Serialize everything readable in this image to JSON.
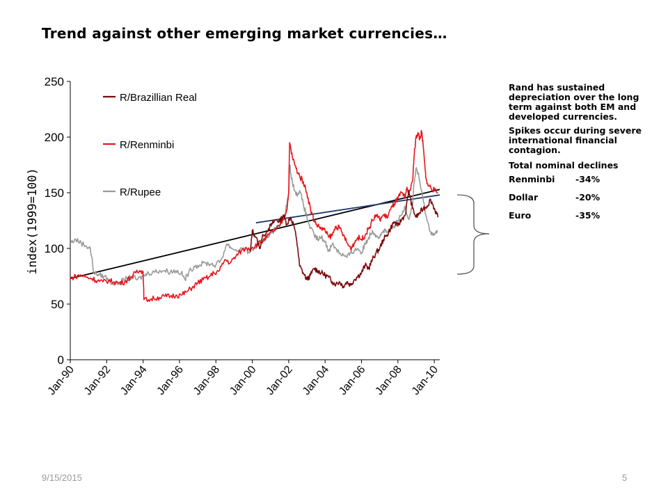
{
  "slide": {
    "title": "Trend against other emerging market currencies…",
    "date": "9/15/2015",
    "page": "5"
  },
  "notes": {
    "paragraph1": "Rand has sustained depreciation over the long term against both EM and developed currencies.",
    "paragraph2": "Spikes occur during severe international financial contagion.",
    "declines_heading": "Total nominal declines",
    "declines": [
      {
        "name": "Renminbi",
        "value": "-34%"
      },
      {
        "name": "Dollar",
        "value": "-20%"
      },
      {
        "name": "Euro",
        "value": "-35%"
      }
    ]
  },
  "chart_data": {
    "type": "line",
    "ylabel": "index(1999=100)",
    "ylim": [
      0,
      250
    ],
    "yticks": [
      0,
      50,
      100,
      150,
      200,
      250
    ],
    "xlim": [
      1990.0,
      2010.3
    ],
    "xticks": [
      {
        "label": "Jan-90",
        "x": 1990
      },
      {
        "label": "Jan-92",
        "x": 1992
      },
      {
        "label": "Jan-94",
        "x": 1994
      },
      {
        "label": "Jan-96",
        "x": 1996
      },
      {
        "label": "Jan-98",
        "x": 1998
      },
      {
        "label": "Jan-00",
        "x": 2000
      },
      {
        "label": "Jan-02",
        "x": 2002
      },
      {
        "label": "Jan-04",
        "x": 2004
      },
      {
        "label": "Jan-06",
        "x": 2006
      },
      {
        "label": "Jan-08",
        "x": 2008
      },
      {
        "label": "Jan-10",
        "x": 2010
      }
    ],
    "legend_position": "top-left",
    "series": [
      {
        "name": "R/Brazillian Real",
        "color": "#7a0a0a",
        "points": [
          [
            1999.9,
            97
          ],
          [
            2000.0,
            116
          ],
          [
            2000.2,
            110
          ],
          [
            2000.4,
            100
          ],
          [
            2000.6,
            112
          ],
          [
            2000.9,
            118
          ],
          [
            2001.1,
            122
          ],
          [
            2001.3,
            126
          ],
          [
            2001.5,
            124
          ],
          [
            2001.7,
            130
          ],
          [
            2001.9,
            122
          ],
          [
            2002.1,
            128
          ],
          [
            2002.3,
            120
          ],
          [
            2002.5,
            100
          ],
          [
            2002.6,
            84
          ],
          [
            2002.8,
            78
          ],
          [
            2003.0,
            72
          ],
          [
            2003.2,
            76
          ],
          [
            2003.4,
            82
          ],
          [
            2003.6,
            80
          ],
          [
            2003.8,
            78
          ],
          [
            2004.0,
            76
          ],
          [
            2004.2,
            74
          ],
          [
            2004.4,
            70
          ],
          [
            2004.6,
            68
          ],
          [
            2004.8,
            70
          ],
          [
            2005.0,
            66
          ],
          [
            2005.2,
            70
          ],
          [
            2005.4,
            67
          ],
          [
            2005.6,
            72
          ],
          [
            2005.8,
            75
          ],
          [
            2006.0,
            78
          ],
          [
            2006.2,
            85
          ],
          [
            2006.4,
            82
          ],
          [
            2006.6,
            90
          ],
          [
            2006.8,
            96
          ],
          [
            2007.0,
            100
          ],
          [
            2007.2,
            108
          ],
          [
            2007.4,
            112
          ],
          [
            2007.6,
            118
          ],
          [
            2007.8,
            124
          ],
          [
            2008.0,
            120
          ],
          [
            2008.2,
            126
          ],
          [
            2008.4,
            130
          ],
          [
            2008.6,
            152
          ],
          [
            2008.8,
            136
          ],
          [
            2009.0,
            128
          ],
          [
            2009.2,
            132
          ],
          [
            2009.4,
            136
          ],
          [
            2009.6,
            138
          ],
          [
            2009.8,
            144
          ],
          [
            2010.0,
            136
          ],
          [
            2010.2,
            128
          ]
        ]
      },
      {
        "name": "R/Renminbi",
        "color": "#e8141b",
        "points": [
          [
            1990.0,
            73
          ],
          [
            1990.3,
            75
          ],
          [
            1990.6,
            76
          ],
          [
            1990.9,
            74
          ],
          [
            1991.2,
            73
          ],
          [
            1991.5,
            71
          ],
          [
            1991.8,
            70
          ],
          [
            1992.1,
            71
          ],
          [
            1992.4,
            70
          ],
          [
            1992.7,
            69
          ],
          [
            1993.0,
            70
          ],
          [
            1993.3,
            74
          ],
          [
            1993.6,
            78
          ],
          [
            1993.9,
            80
          ],
          [
            1994.0,
            79
          ],
          [
            1994.05,
            54
          ],
          [
            1994.3,
            54
          ],
          [
            1994.6,
            55
          ],
          [
            1994.9,
            56
          ],
          [
            1995.2,
            57
          ],
          [
            1995.5,
            57
          ],
          [
            1995.8,
            58
          ],
          [
            1996.1,
            58
          ],
          [
            1996.4,
            61
          ],
          [
            1996.7,
            65
          ],
          [
            1997.0,
            69
          ],
          [
            1997.3,
            72
          ],
          [
            1997.6,
            74
          ],
          [
            1997.9,
            78
          ],
          [
            1998.2,
            80
          ],
          [
            1998.5,
            90
          ],
          [
            1998.8,
            87
          ],
          [
            1999.1,
            93
          ],
          [
            1999.4,
            98
          ],
          [
            1999.7,
            100
          ],
          [
            2000.0,
            101
          ],
          [
            2000.3,
            104
          ],
          [
            2000.6,
            107
          ],
          [
            2000.9,
            112
          ],
          [
            2001.2,
            116
          ],
          [
            2001.5,
            120
          ],
          [
            2001.7,
            126
          ],
          [
            2001.9,
            135
          ],
          [
            2002.0,
            150
          ],
          [
            2002.05,
            195
          ],
          [
            2002.2,
            182
          ],
          [
            2002.4,
            172
          ],
          [
            2002.6,
            165
          ],
          [
            2002.8,
            160
          ],
          [
            2003.0,
            150
          ],
          [
            2003.2,
            135
          ],
          [
            2003.4,
            125
          ],
          [
            2003.6,
            120
          ],
          [
            2003.8,
            118
          ],
          [
            2004.0,
            116
          ],
          [
            2004.2,
            110
          ],
          [
            2004.4,
            112
          ],
          [
            2004.6,
            120
          ],
          [
            2004.8,
            118
          ],
          [
            2005.0,
            112
          ],
          [
            2005.2,
            105
          ],
          [
            2005.4,
            100
          ],
          [
            2005.6,
            105
          ],
          [
            2005.8,
            110
          ],
          [
            2006.0,
            108
          ],
          [
            2006.2,
            112
          ],
          [
            2006.4,
            118
          ],
          [
            2006.6,
            125
          ],
          [
            2006.8,
            130
          ],
          [
            2007.0,
            126
          ],
          [
            2007.2,
            130
          ],
          [
            2007.4,
            128
          ],
          [
            2007.6,
            135
          ],
          [
            2007.8,
            140
          ],
          [
            2008.0,
            145
          ],
          [
            2008.2,
            150
          ],
          [
            2008.4,
            145
          ],
          [
            2008.5,
            155
          ],
          [
            2008.6,
            148
          ],
          [
            2008.8,
            160
          ],
          [
            2008.9,
            185
          ],
          [
            2009.0,
            200
          ],
          [
            2009.1,
            204
          ],
          [
            2009.2,
            198
          ],
          [
            2009.3,
            205
          ],
          [
            2009.4,
            190
          ],
          [
            2009.5,
            170
          ],
          [
            2009.6,
            158
          ],
          [
            2009.8,
            155
          ],
          [
            2010.0,
            152
          ],
          [
            2010.2,
            150
          ]
        ]
      },
      {
        "name": "R/Rupee",
        "color": "#9a9a9a",
        "points": [
          [
            1990.0,
            105
          ],
          [
            1990.3,
            108
          ],
          [
            1990.6,
            105
          ],
          [
            1990.9,
            102
          ],
          [
            1991.1,
            100
          ],
          [
            1991.3,
            78
          ],
          [
            1991.6,
            76
          ],
          [
            1991.9,
            75
          ],
          [
            1992.2,
            70
          ],
          [
            1992.5,
            68
          ],
          [
            1992.8,
            70
          ],
          [
            1993.1,
            73
          ],
          [
            1993.4,
            74
          ],
          [
            1993.7,
            72
          ],
          [
            1994.0,
            75
          ],
          [
            1994.3,
            78
          ],
          [
            1994.6,
            79
          ],
          [
            1994.9,
            80
          ],
          [
            1995.2,
            80
          ],
          [
            1995.5,
            79
          ],
          [
            1995.8,
            80
          ],
          [
            1996.1,
            78
          ],
          [
            1996.3,
            72
          ],
          [
            1996.5,
            78
          ],
          [
            1996.8,
            84
          ],
          [
            1997.1,
            85
          ],
          [
            1997.4,
            87
          ],
          [
            1997.7,
            86
          ],
          [
            1998.0,
            85
          ],
          [
            1998.3,
            90
          ],
          [
            1998.6,
            104
          ],
          [
            1998.9,
            100
          ],
          [
            1999.2,
            98
          ],
          [
            1999.5,
            100
          ],
          [
            1999.8,
            97
          ],
          [
            2000.1,
            100
          ],
          [
            2000.4,
            104
          ],
          [
            2000.7,
            108
          ],
          [
            2001.0,
            114
          ],
          [
            2001.3,
            118
          ],
          [
            2001.6,
            124
          ],
          [
            2001.8,
            130
          ],
          [
            2002.0,
            150
          ],
          [
            2002.05,
            175
          ],
          [
            2002.2,
            160
          ],
          [
            2002.4,
            148
          ],
          [
            2002.6,
            152
          ],
          [
            2002.8,
            140
          ],
          [
            2003.0,
            128
          ],
          [
            2003.2,
            118
          ],
          [
            2003.4,
            112
          ],
          [
            2003.6,
            108
          ],
          [
            2003.8,
            110
          ],
          [
            2004.0,
            106
          ],
          [
            2004.2,
            98
          ],
          [
            2004.4,
            104
          ],
          [
            2004.6,
            100
          ],
          [
            2004.8,
            96
          ],
          [
            2005.0,
            94
          ],
          [
            2005.2,
            92
          ],
          [
            2005.4,
            96
          ],
          [
            2005.6,
            98
          ],
          [
            2005.8,
            100
          ],
          [
            2006.0,
            96
          ],
          [
            2006.2,
            104
          ],
          [
            2006.4,
            110
          ],
          [
            2006.6,
            116
          ],
          [
            2006.8,
            112
          ],
          [
            2007.0,
            110
          ],
          [
            2007.2,
            116
          ],
          [
            2007.4,
            114
          ],
          [
            2007.6,
            118
          ],
          [
            2007.8,
            120
          ],
          [
            2008.0,
            125
          ],
          [
            2008.2,
            130
          ],
          [
            2008.4,
            138
          ],
          [
            2008.6,
            126
          ],
          [
            2008.8,
            140
          ],
          [
            2008.9,
            160
          ],
          [
            2009.0,
            172
          ],
          [
            2009.1,
            168
          ],
          [
            2009.2,
            160
          ],
          [
            2009.4,
            142
          ],
          [
            2009.6,
            125
          ],
          [
            2009.8,
            115
          ],
          [
            2010.0,
            112
          ],
          [
            2010.2,
            116
          ]
        ]
      }
    ],
    "trendlines": [
      {
        "color": "#000000",
        "from": [
          1990.0,
          73
        ],
        "to": [
          2010.3,
          153
        ]
      },
      {
        "color": "#1f3a6b",
        "from": [
          2000.2,
          123
        ],
        "to": [
          2010.3,
          148
        ]
      }
    ]
  }
}
